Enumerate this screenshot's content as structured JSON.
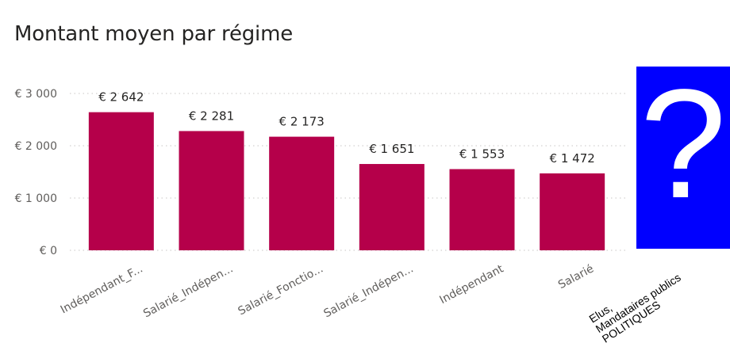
{
  "chart_data": {
    "type": "bar",
    "title": "Montant moyen par régime",
    "categories": [
      "Indépendant_F...",
      "Salarié_Indépen...",
      "Salarié_Fonctio...",
      "Salarié_Indépen...",
      "Indépendant",
      "Salarié"
    ],
    "values": [
      2642,
      2281,
      2173,
      1651,
      1553,
      1472
    ],
    "data_labels": [
      "€ 2 642",
      "€ 2 281",
      "€ 2 173",
      "€ 1 651",
      "€ 1 553",
      "€ 1 472"
    ],
    "y_ticks": [
      0,
      1000,
      2000,
      3000
    ],
    "y_tick_labels": [
      "€ 0",
      "€ 1 000",
      "€ 2 000",
      "€ 3 000"
    ],
    "ylim": [
      0,
      3000
    ],
    "grid": true,
    "bar_color": "#b5004a"
  },
  "overlay": {
    "glyph": "?",
    "box_color": "#0000ff",
    "note_lines": [
      "Elus,",
      "Mandataires publics",
      "POLITIQUES"
    ]
  }
}
